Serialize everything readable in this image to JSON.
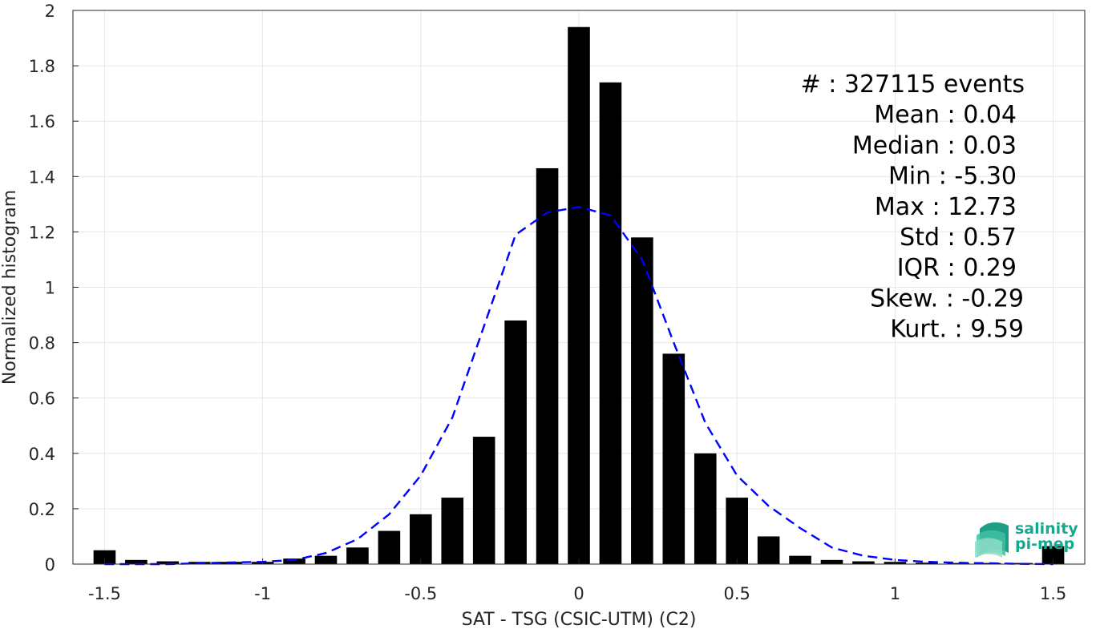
{
  "chart_data": {
    "type": "bar",
    "xlabel": "SAT - TSG (CSIC-UTM) (C2)",
    "ylabel": "Normalized histogram",
    "xlim": [
      -1.6,
      1.6
    ],
    "ylim": [
      0,
      2
    ],
    "xticks": [
      -1.5,
      -1,
      -0.5,
      0,
      0.5,
      1,
      1.5
    ],
    "xtick_labels": [
      "-1.5",
      "-1",
      "-0.5",
      "0",
      "0.5",
      "1",
      "1.5"
    ],
    "yticks": [
      0,
      0.2,
      0.4,
      0.6,
      0.8,
      1,
      1.2,
      1.4,
      1.6,
      1.8,
      2
    ],
    "ytick_labels": [
      "0",
      "0.2",
      "0.4",
      "0.6",
      "0.8",
      "1",
      "1.2",
      "1.4",
      "1.6",
      "1.8",
      "2"
    ],
    "grid": true,
    "bar_color": "#000000",
    "bar_width": 0.07,
    "bars": {
      "x": [
        -1.5,
        -1.4,
        -1.3,
        -1.2,
        -1.1,
        -1.0,
        -0.9,
        -0.8,
        -0.7,
        -0.6,
        -0.5,
        -0.4,
        -0.3,
        -0.2,
        -0.1,
        0.0,
        0.1,
        0.2,
        0.3,
        0.4,
        0.5,
        0.6,
        0.7,
        0.8,
        0.9,
        1.0,
        1.1,
        1.2,
        1.3,
        1.4,
        1.5
      ],
      "y": [
        0.05,
        0.015,
        0.01,
        0.008,
        0.008,
        0.008,
        0.02,
        0.03,
        0.06,
        0.12,
        0.18,
        0.24,
        0.46,
        0.88,
        1.43,
        1.94,
        1.74,
        1.18,
        0.76,
        0.4,
        0.24,
        0.1,
        0.03,
        0.015,
        0.01,
        0.008,
        0.005,
        0.004,
        0.004,
        0.004,
        0.065
      ]
    },
    "fit_curve": {
      "color": "#0000ff",
      "style": "dashed",
      "x": [
        -1.5,
        -1.4,
        -1.3,
        -1.2,
        -1.1,
        -1.0,
        -0.9,
        -0.8,
        -0.7,
        -0.6,
        -0.5,
        -0.4,
        -0.3,
        -0.2,
        -0.1,
        0.0,
        0.1,
        0.2,
        0.3,
        0.4,
        0.5,
        0.6,
        0.7,
        0.8,
        0.9,
        1.0,
        1.1,
        1.2,
        1.3,
        1.4,
        1.5
      ],
      "y": [
        0.0,
        0.0,
        0.0,
        0.003,
        0.006,
        0.008,
        0.015,
        0.04,
        0.09,
        0.18,
        0.32,
        0.53,
        0.86,
        1.19,
        1.27,
        1.29,
        1.26,
        1.1,
        0.8,
        0.51,
        0.32,
        0.21,
        0.13,
        0.06,
        0.03,
        0.015,
        0.008,
        0.005,
        0.003,
        0.001,
        0.0
      ]
    },
    "annotation": {
      "lines": [
        "#  : 327115 events",
        "Mean : 0.04",
        "Median : 0.03",
        "Min : -5.30",
        "Max : 12.73",
        "Std : 0.57",
        "IQR : 0.29",
        "Skew. : -0.29",
        "Kurt. : 9.59"
      ]
    }
  },
  "logo": {
    "line1": "salinity",
    "line2": "pi-mep",
    "color": "#17a98f"
  }
}
